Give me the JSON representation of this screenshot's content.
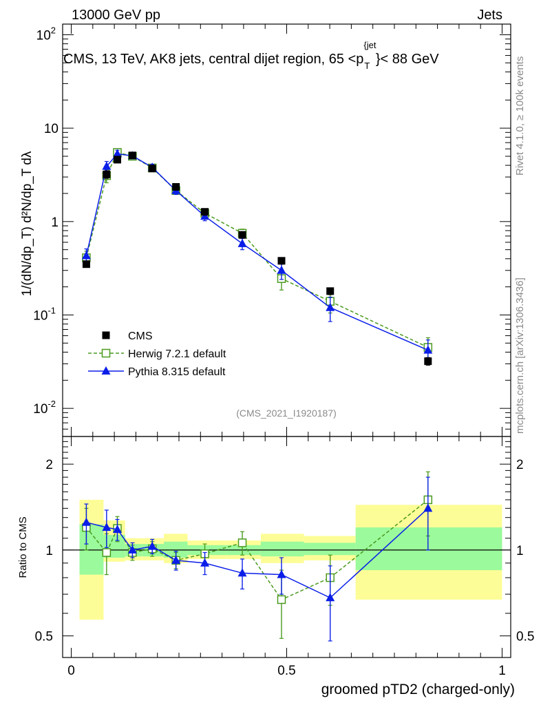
{
  "header": {
    "beam": "13000 GeV pp",
    "category": "Jets"
  },
  "main_panel": {
    "title": "CMS, 13 TeV, AK8 jets, central dijet region, 65 <p_T^{jet}< 88 GeV",
    "title_parts": {
      "prefix": "CMS, 13 TeV, AK8 jets, central dijet region, 65 <p",
      "sub": "T",
      "sup": "{jet",
      "suffix": "}< 88 GeV"
    },
    "ylabel": "1/(dN/dp_T) d²N/dp_T dλ",
    "analysis_id": "(CMS_2021_I1920187)",
    "side_labels": {
      "rivet": "Rivet 4.1.0, ≥ 100k events",
      "mcplots": "mcplots.cern.ch [arXiv:1306.3436]"
    }
  },
  "chart_data": [
    {
      "type": "scatter",
      "scale": "log",
      "ylim": [
        0.005,
        130
      ],
      "xlim": [
        -0.02,
        1.02
      ],
      "y_tick_labels": [
        "10^-2",
        "10^-1",
        "1",
        "10",
        "10^2"
      ],
      "y_tick_values": [
        0.01,
        0.1,
        1,
        10,
        100
      ],
      "legend": [
        "CMS",
        "Herwig 7.2.1 default",
        "Pythia 8.315 default"
      ],
      "legend_position": "bottom-left",
      "bins": [
        [
          0.0,
          0.075
        ],
        [
          0.075,
          0.095
        ],
        [
          0.095,
          0.125
        ],
        [
          0.125,
          0.165
        ],
        [
          0.165,
          0.215
        ],
        [
          0.215,
          0.27
        ],
        [
          0.27,
          0.36
        ],
        [
          0.36,
          0.44
        ],
        [
          0.44,
          0.54
        ],
        [
          0.54,
          0.66
        ],
        [
          0.66,
          1.0
        ]
      ],
      "series": [
        {
          "name": "CMS",
          "color": "#000000",
          "marker": "square",
          "x": [
            0.035,
            0.082,
            0.107,
            0.142,
            0.188,
            0.243,
            0.31,
            0.397,
            0.488,
            0.601,
            0.828
          ],
          "y": [
            0.35,
            3.2,
            4.6,
            5.1,
            3.7,
            2.35,
            1.27,
            0.72,
            0.38,
            0.18,
            0.032
          ],
          "err": [
            0.02,
            0.3,
            0.35,
            0.3,
            0.2,
            0.15,
            0.08,
            0.05,
            0.03,
            0.015,
            0.003
          ]
        },
        {
          "name": "Herwig 7.2.1 default",
          "color": "#4a9a1e",
          "marker": "open-square",
          "line": "dashed",
          "x": [
            0.035,
            0.082,
            0.107,
            0.142,
            0.188,
            0.243,
            0.31,
            0.397,
            0.488,
            0.601,
            0.828
          ],
          "y": [
            0.41,
            3.1,
            5.5,
            5.0,
            3.75,
            2.15,
            1.23,
            0.75,
            0.245,
            0.14,
            0.045
          ],
          "err": [
            0.07,
            0.5,
            0.5,
            0.3,
            0.3,
            0.2,
            0.12,
            0.08,
            0.06,
            0.035,
            0.012
          ]
        },
        {
          "name": "Pythia 8.315 default",
          "color": "#0a1ee8",
          "marker": "triangle",
          "line": "solid",
          "x": [
            0.035,
            0.082,
            0.107,
            0.142,
            0.188,
            0.243,
            0.31,
            0.397,
            0.488,
            0.601,
            0.828
          ],
          "y": [
            0.43,
            3.9,
            5.3,
            5.05,
            3.8,
            2.15,
            1.14,
            0.58,
            0.3,
            0.12,
            0.042
          ],
          "err": [
            0.08,
            0.5,
            0.5,
            0.3,
            0.3,
            0.2,
            0.12,
            0.08,
            0.06,
            0.035,
            0.012
          ]
        }
      ]
    },
    {
      "type": "scatter",
      "scale": "log",
      "ylabel": "Ratio to CMS",
      "xlabel": "groomed pTD2 (charged-only)",
      "ylim": [
        0.42,
        2.5
      ],
      "xlim": [
        -0.02,
        1.02
      ],
      "y_tick_labels": [
        "0.5",
        "1",
        "2"
      ],
      "y_tick_values": [
        0.5,
        1,
        2
      ],
      "x_tick_labels": [
        "0",
        "0.5",
        "1"
      ],
      "x_tick_values": [
        0,
        0.5,
        1
      ],
      "bands": {
        "yellow": [
          [
            0.57,
            1.5
          ],
          [
            0.91,
            1.27
          ],
          [
            0.91,
            1.27
          ],
          [
            0.92,
            1.1
          ],
          [
            0.92,
            1.1
          ],
          [
            0.9,
            1.14
          ],
          [
            0.93,
            1.08
          ],
          [
            0.93,
            1.08
          ],
          [
            0.9,
            1.14
          ],
          [
            0.92,
            1.12
          ],
          [
            0.67,
            1.44
          ]
        ],
        "green": [
          [
            0.82,
            1.23
          ],
          [
            0.94,
            1.13
          ],
          [
            0.94,
            1.13
          ],
          [
            0.95,
            1.05
          ],
          [
            0.95,
            1.05
          ],
          [
            0.94,
            1.07
          ],
          [
            0.96,
            1.04
          ],
          [
            0.96,
            1.04
          ],
          [
            0.95,
            1.07
          ],
          [
            0.96,
            1.06
          ],
          [
            0.85,
            1.2
          ]
        ]
      },
      "series": [
        {
          "name": "Herwig 7.2.1 default",
          "x": [
            0.035,
            0.082,
            0.107,
            0.142,
            0.188,
            0.243,
            0.31,
            0.397,
            0.488,
            0.601,
            0.828
          ],
          "y": [
            1.2,
            0.98,
            1.19,
            0.98,
            1.01,
            0.92,
            0.97,
            1.06,
            0.67,
            0.8,
            1.5
          ],
          "err": [
            0.2,
            0.16,
            0.12,
            0.06,
            0.06,
            0.06,
            0.08,
            0.1,
            0.18,
            0.16,
            0.38
          ]
        },
        {
          "name": "Pythia 8.315 default",
          "x": [
            0.035,
            0.082,
            0.107,
            0.142,
            0.188,
            0.243,
            0.31,
            0.397,
            0.488,
            0.601,
            0.828
          ],
          "y": [
            1.25,
            1.2,
            1.18,
            1.0,
            1.03,
            0.92,
            0.9,
            0.83,
            0.82,
            0.68,
            1.4
          ],
          "err": [
            0.2,
            0.18,
            0.1,
            0.06,
            0.06,
            0.07,
            0.08,
            0.1,
            0.12,
            0.2,
            0.4
          ]
        }
      ]
    }
  ]
}
